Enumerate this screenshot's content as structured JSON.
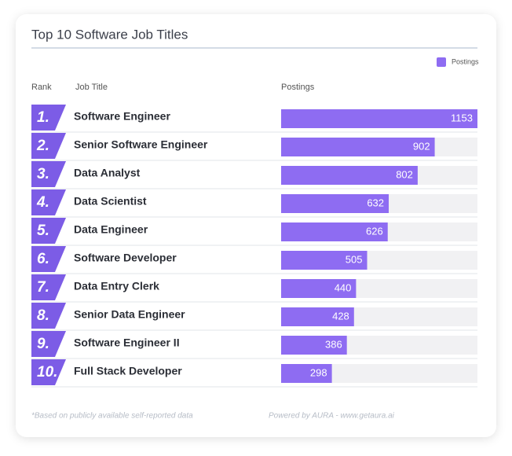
{
  "chart_data": {
    "type": "bar",
    "orientation": "horizontal",
    "title": "Top 10 Software Job Titles",
    "columns": [
      "Rank",
      "Job Title",
      "Postings"
    ],
    "ranks": [
      "1.",
      "2.",
      "3.",
      "4.",
      "5.",
      "6.",
      "7.",
      "8.",
      "9.",
      "10."
    ],
    "categories": [
      "Software Engineer",
      "Senior Software Engineer",
      "Data Analyst",
      "Data Scientist",
      "Data Engineer",
      "Software Developer",
      "Data Entry Clerk",
      "Senior Data Engineer",
      "Software Engineer II",
      "Full Stack Developer"
    ],
    "series": [
      {
        "name": "Postings",
        "color": "#8e6cf2",
        "values": [
          1153,
          902,
          802,
          632,
          626,
          505,
          440,
          428,
          386,
          298
        ]
      }
    ],
    "xlim": [
      0,
      1153
    ],
    "rank_color": "#7c5ce6",
    "legend": "top-right",
    "footnote": "*Based on publicly available self-reported data",
    "credit": "Powered by AURA - www.getaura.ai"
  }
}
